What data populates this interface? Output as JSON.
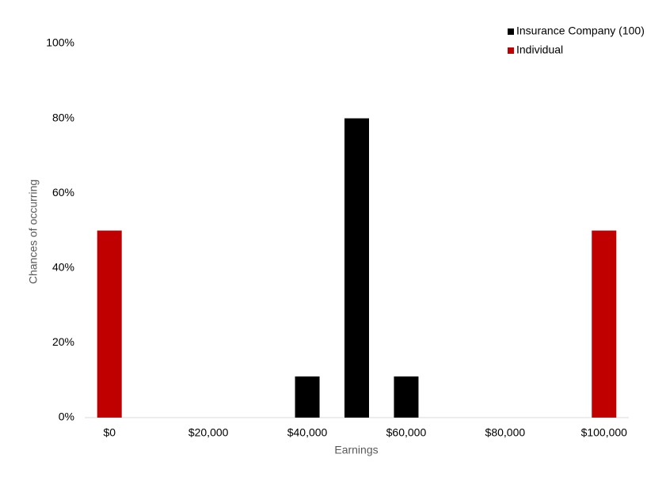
{
  "chart_data": {
    "type": "bar",
    "x_label": "Earnings",
    "y_label": "Chances of occurring",
    "series": [
      {
        "name": "Insurance Company (100)",
        "color": "#000000",
        "x": [
          40000,
          50000,
          60000
        ],
        "values": [
          11,
          80,
          11
        ]
      },
      {
        "name": "Individual",
        "color": "#c00000",
        "x": [
          0,
          100000
        ],
        "values": [
          50,
          50
        ]
      }
    ],
    "xlim": [
      -5000,
      105000
    ],
    "xticks": [
      {
        "value": 0,
        "label": "$0"
      },
      {
        "value": 20000,
        "label": "$20,000"
      },
      {
        "value": 40000,
        "label": "$40,000"
      },
      {
        "value": 60000,
        "label": "$60,000"
      },
      {
        "value": 80000,
        "label": "$80,000"
      },
      {
        "value": 100000,
        "label": "$100,000"
      }
    ],
    "ylim": [
      0,
      100
    ],
    "yticks": [
      {
        "value": 0,
        "label": "0%"
      },
      {
        "value": 20,
        "label": "20%"
      },
      {
        "value": 40,
        "label": "40%"
      },
      {
        "value": 60,
        "label": "60%"
      },
      {
        "value": 80,
        "label": "80%"
      },
      {
        "value": 100,
        "label": "100%"
      }
    ],
    "grid": false,
    "legend": "top-right"
  }
}
